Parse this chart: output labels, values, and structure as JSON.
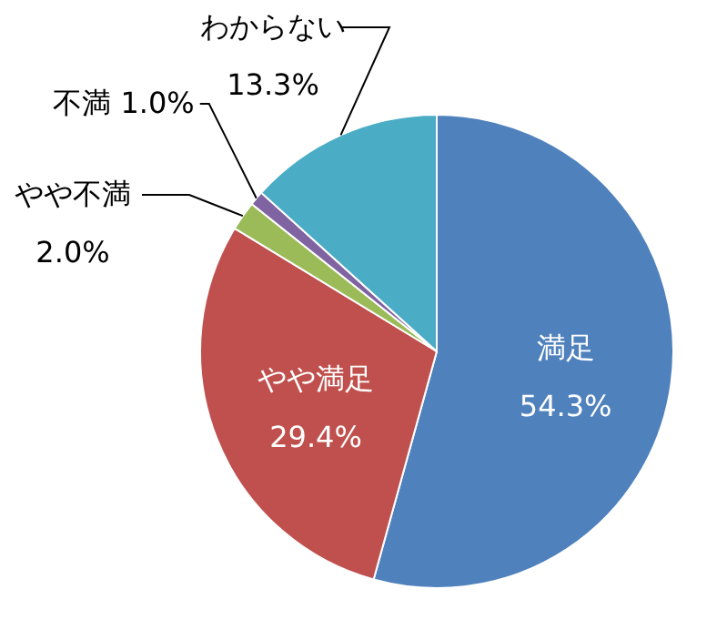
{
  "chart_data": {
    "type": "pie",
    "categories": [
      "満足",
      "やや満足",
      "やや不満",
      "不満",
      "わからない"
    ],
    "values": [
      54.3,
      29.4,
      2.0,
      1.0,
      13.3
    ],
    "colors": [
      "#4f81bd",
      "#c0504d",
      "#9bbb59",
      "#8064a2",
      "#4bacc6"
    ],
    "value_labels": [
      "54.3%",
      "29.4%",
      "2.0%",
      "1.0%",
      "13.3%"
    ]
  }
}
